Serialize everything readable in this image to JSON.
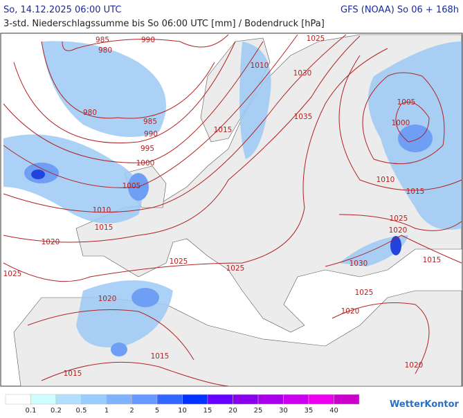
{
  "header": {
    "date": "So, 14.12.2025 06:00 UTC",
    "model": "GFS (NOAA) So 06 + 168h",
    "subtitle": "3-std. Niederschlagssumme bis So 06:00 UTC [mm] / Bodendruck [hPa]"
  },
  "isobar_labels": [
    985,
    990,
    980,
    980,
    985,
    990,
    995,
    1000,
    1005,
    1010,
    1015,
    1020,
    1025,
    1025,
    1025,
    1020,
    1015,
    1015,
    1015,
    1010,
    1025,
    1030,
    1035,
    1005,
    1000,
    1010,
    1015,
    1025,
    1020,
    1030,
    1015,
    1025,
    1020,
    1020
  ],
  "legend": [
    {
      "label": 0.1,
      "color": "#ffffff"
    },
    {
      "label": 0.2,
      "color": "#ccffff"
    },
    {
      "label": 0.5,
      "color": "#b3e0ff"
    },
    {
      "label": 1,
      "color": "#99ccff"
    },
    {
      "label": 2,
      "color": "#80b3ff"
    },
    {
      "label": 5,
      "color": "#6699ff"
    },
    {
      "label": 10,
      "color": "#3366ff"
    },
    {
      "label": 15,
      "color": "#0033ff"
    },
    {
      "label": 20,
      "color": "#6600ff"
    },
    {
      "label": 25,
      "color": "#8800ee"
    },
    {
      "label": 30,
      "color": "#aa00ee"
    },
    {
      "label": 35,
      "color": "#cc00ee"
    },
    {
      "label": 40,
      "color": "#ee00ee"
    },
    {
      "label": null,
      "color": "#cc00cc"
    }
  ],
  "logo": "WetterKontor"
}
